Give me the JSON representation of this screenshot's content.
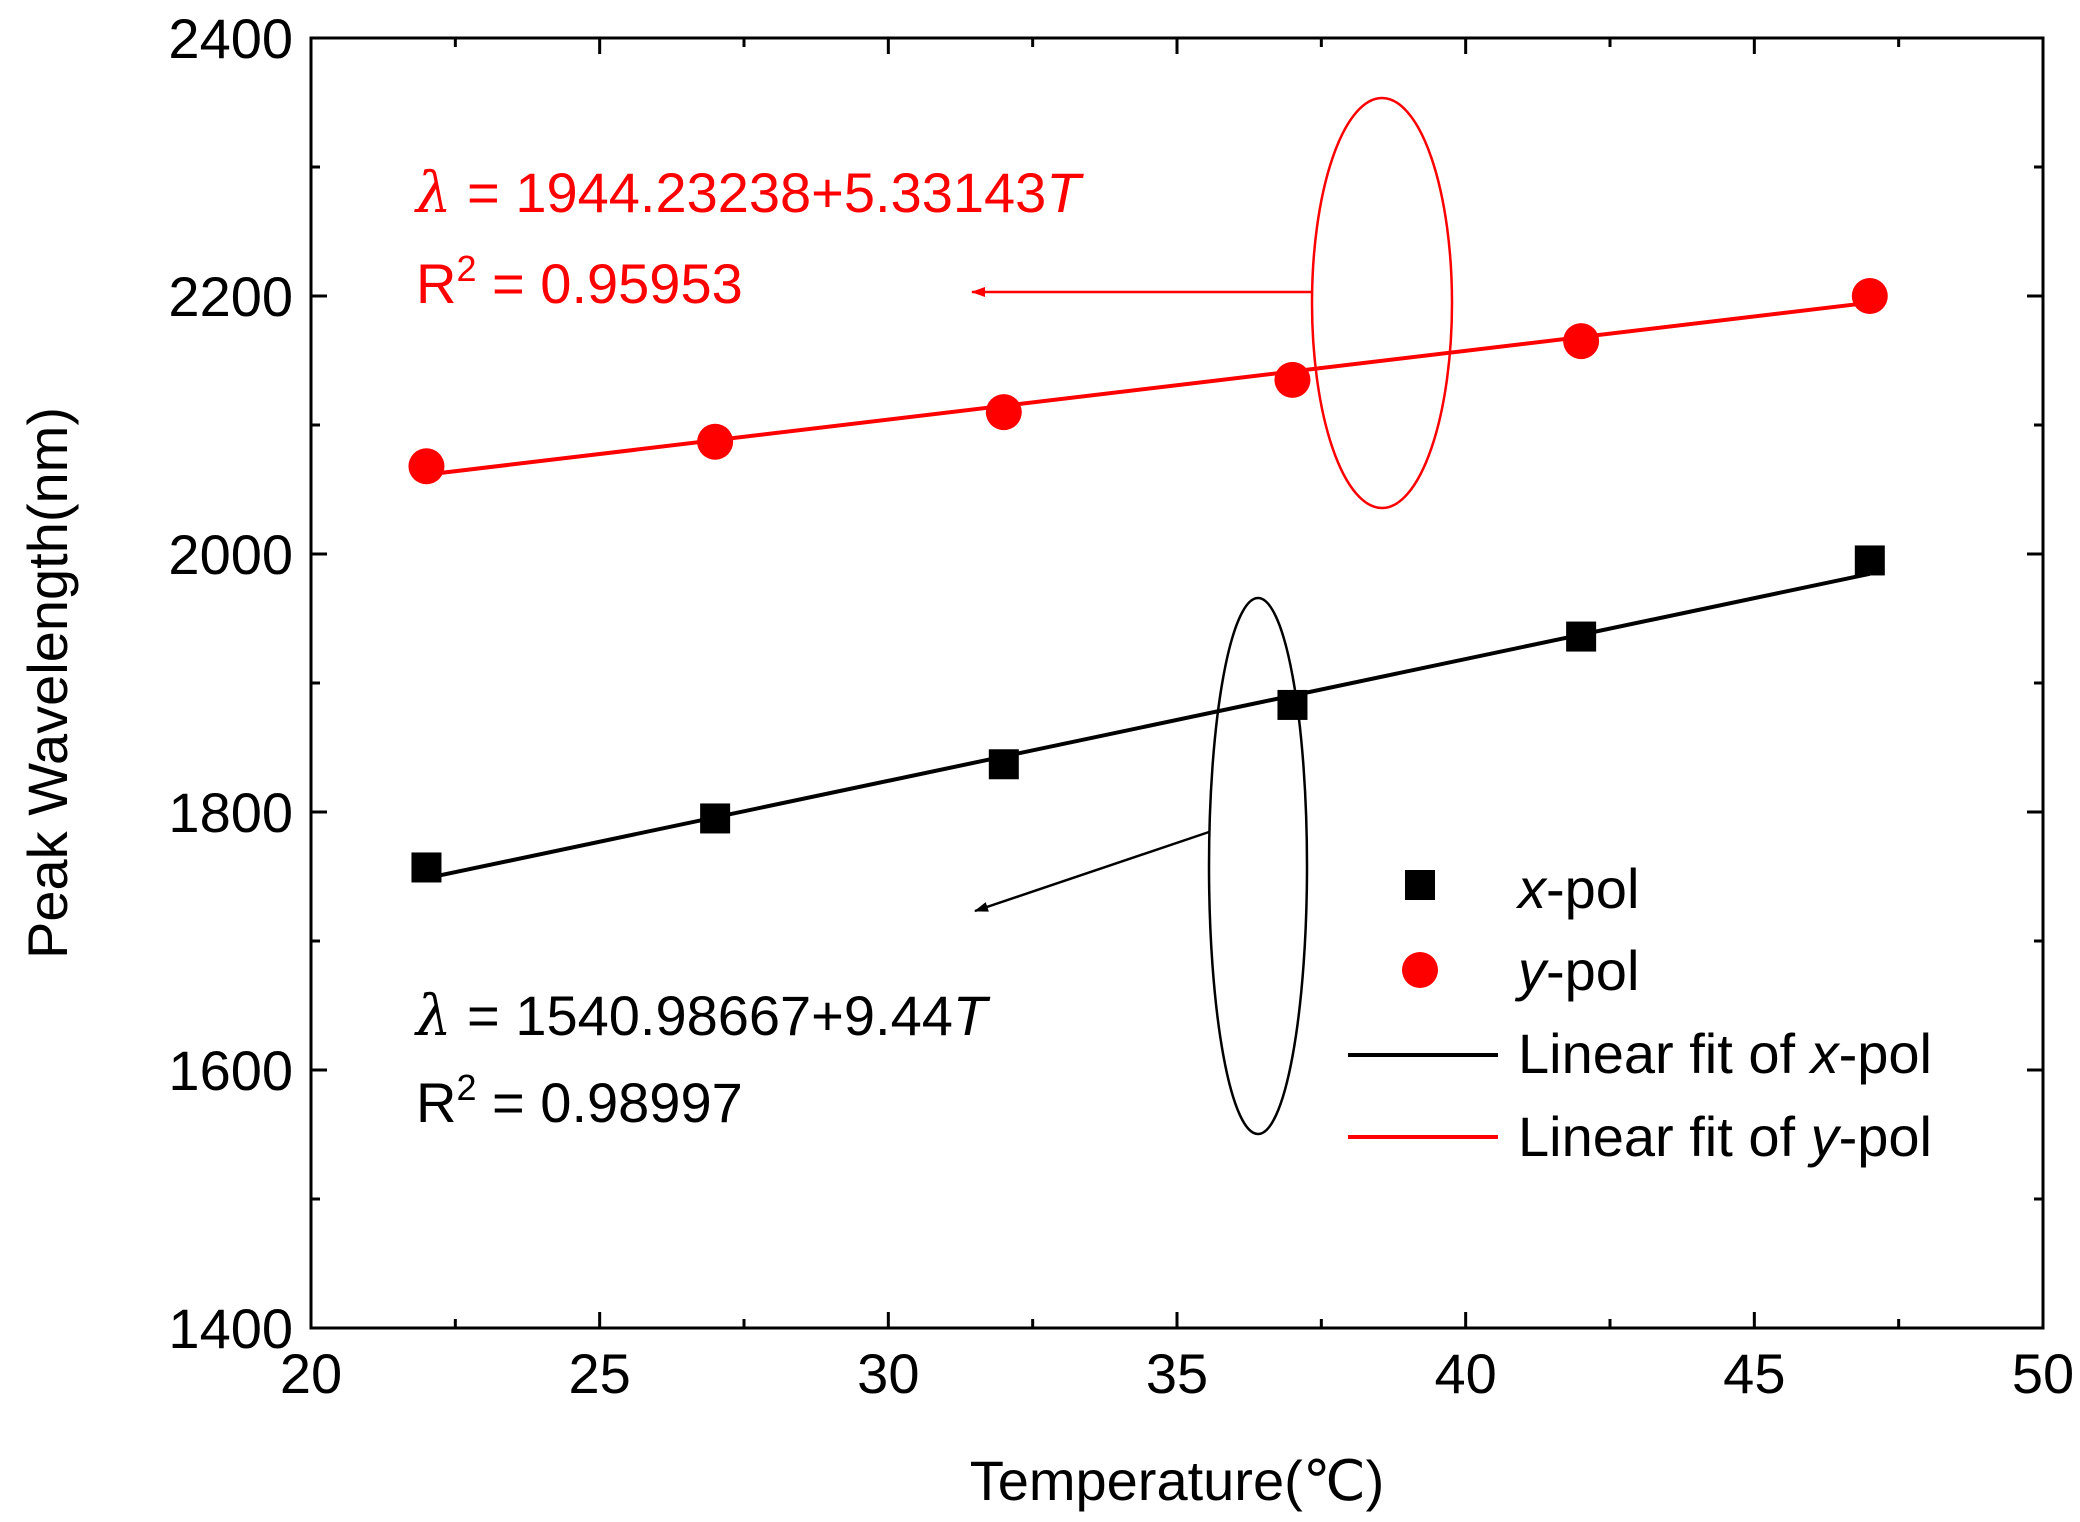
{
  "chart_data": {
    "type": "scatter",
    "xlabel": "Temperature(℃)",
    "ylabel": "Peak Wavelength(nm)",
    "xlim": [
      20,
      50
    ],
    "ylim": [
      1400,
      2400
    ],
    "xticks": [
      20,
      25,
      30,
      35,
      40,
      45,
      50
    ],
    "yticks": [
      1400,
      1600,
      1800,
      2000,
      2200,
      2400
    ],
    "x": [
      22,
      27,
      32,
      37,
      42,
      47
    ],
    "series": [
      {
        "name": "x-pol",
        "name_italic": "x",
        "name_rest": "-pol",
        "marker": "square",
        "color": "#000000",
        "values": [
          1757,
          1795,
          1837,
          1883,
          1936,
          1995
        ]
      },
      {
        "name": "y-pol",
        "name_italic": "y",
        "name_rest": "-pol",
        "marker": "circle",
        "color": "#ff0000",
        "values": [
          2068,
          2087,
          2110,
          2135,
          2165,
          2200
        ]
      }
    ],
    "fits": [
      {
        "name": "Linear fit of x-pol",
        "prefix": "Linear fit of ",
        "italic": "x",
        "suffix": "-pol",
        "color": "#000000",
        "intercept": 1540.98667,
        "slope": 9.44,
        "equation": {
          "lambda": "λ",
          "body": " = 1540.98667+9.44",
          "var": "T"
        },
        "r2": {
          "label": "R",
          "sup": "2",
          "value": " = 0.98997"
        }
      },
      {
        "name": "Linear fit of y-pol",
        "prefix": "Linear fit of ",
        "italic": "y",
        "suffix": "-pol",
        "color": "#ff0000",
        "intercept": 1944.23238,
        "slope": 5.33143,
        "equation": {
          "lambda": "λ",
          "body": " = 1944.23238+5.33143",
          "var": "T"
        },
        "r2": {
          "label": "R",
          "sup": "2",
          "value": " = 0.95953"
        }
      }
    ],
    "legend_position": "lower-right"
  }
}
